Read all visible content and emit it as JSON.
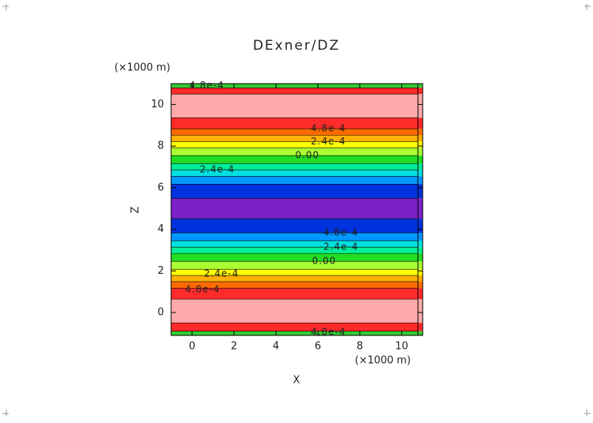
{
  "chart_data": {
    "type": "contour",
    "title": "DExner/DZ",
    "x_label": "X",
    "y_label": "Z",
    "x_unit": "(×1000 m)",
    "y_unit": "(×1000 m)",
    "xlim": [
      -1,
      11
    ],
    "ylim": [
      -1.1,
      11
    ],
    "xticks": [
      0,
      2,
      4,
      6,
      8,
      10
    ],
    "yticks": [
      0,
      2,
      4,
      6,
      8,
      10
    ],
    "bands": [
      {
        "from": 10.8,
        "to": 11,
        "color": "#33cc33"
      },
      {
        "from": 10.5,
        "to": 10.8,
        "color": "#ff2a2a"
      },
      {
        "from": 9.36,
        "to": 10.5,
        "color": "#ffaaaa"
      },
      {
        "from": 8.83,
        "to": 9.36,
        "color": "#ff2a2a"
      },
      {
        "from": 8.52,
        "to": 8.83,
        "color": "#ff6a00"
      },
      {
        "from": 8.22,
        "to": 8.52,
        "color": "#ffb000"
      },
      {
        "from": 7.92,
        "to": 8.22,
        "color": "#ffff00"
      },
      {
        "from": 7.54,
        "to": 7.92,
        "color": "#aaff33"
      },
      {
        "from": 7.16,
        "to": 7.54,
        "color": "#22dd22"
      },
      {
        "from": 6.86,
        "to": 7.16,
        "color": "#00ee99"
      },
      {
        "from": 6.55,
        "to": 6.86,
        "color": "#00e0e0"
      },
      {
        "from": 6.17,
        "to": 6.55,
        "color": "#0099ff"
      },
      {
        "from": 5.49,
        "to": 6.17,
        "color": "#0033dd"
      },
      {
        "from": 4.51,
        "to": 5.49,
        "color": "#7a22c8"
      },
      {
        "from": 3.83,
        "to": 4.51,
        "color": "#0033dd"
      },
      {
        "from": 3.45,
        "to": 3.83,
        "color": "#0099ff"
      },
      {
        "from": 3.14,
        "to": 3.45,
        "color": "#00e0e0"
      },
      {
        "from": 2.84,
        "to": 3.14,
        "color": "#00ee99"
      },
      {
        "from": 2.46,
        "to": 2.84,
        "color": "#22dd22"
      },
      {
        "from": 2.08,
        "to": 2.46,
        "color": "#aaff33"
      },
      {
        "from": 1.78,
        "to": 2.08,
        "color": "#ffff00"
      },
      {
        "from": 1.48,
        "to": 1.78,
        "color": "#ffb000"
      },
      {
        "from": 1.17,
        "to": 1.48,
        "color": "#ff6a00"
      },
      {
        "from": 0.64,
        "to": 1.17,
        "color": "#ff2a2a"
      },
      {
        "from": -0.5,
        "to": 0.64,
        "color": "#ffaaaa"
      },
      {
        "from": -0.9,
        "to": -0.5,
        "color": "#ff2a2a"
      },
      {
        "from": -1.1,
        "to": -0.9,
        "color": "#33cc33"
      }
    ],
    "contour_labels": [
      {
        "text": "4.8e-4",
        "x": 0.7,
        "z": 10.9
      },
      {
        "text": "4.8e-4",
        "x": 6.5,
        "z": 8.83
      },
      {
        "text": "2.4e-4",
        "x": 6.5,
        "z": 8.22
      },
      {
        "text": "0.00",
        "x": 5.5,
        "z": 7.54
      },
      {
        "text": "-2.4e-4",
        "x": 1.1,
        "z": 6.86
      },
      {
        "text": "-4.8e-4",
        "x": 7.0,
        "z": 3.83
      },
      {
        "text": "-2.4e-4",
        "x": 7.0,
        "z": 3.14
      },
      {
        "text": "0.00",
        "x": 6.3,
        "z": 2.46
      },
      {
        "text": "2.4e-4",
        "x": 1.4,
        "z": 1.85
      },
      {
        "text": "4.8e-4",
        "x": 0.5,
        "z": 1.1
      },
      {
        "text": "4.8e-4",
        "x": 6.5,
        "z": -0.95
      }
    ]
  }
}
